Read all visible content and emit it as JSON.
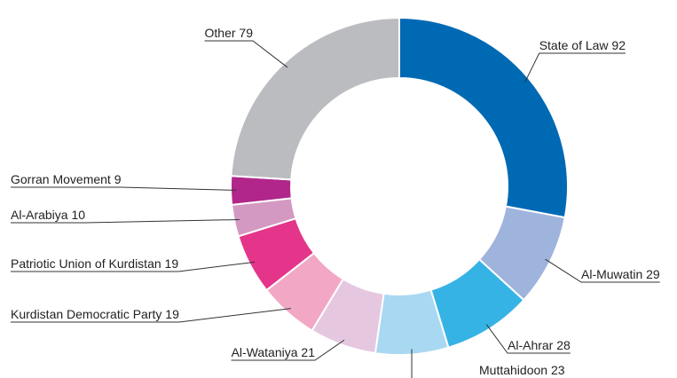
{
  "chart_data": {
    "type": "donut",
    "categories": [
      "State of Law",
      "Al-Muwatin",
      "Al-Ahrar",
      "Muttahidoon",
      "Al-Wataniya",
      "Kurdistan Democratic Party",
      "Patriotic Union of Kurdistan",
      "Al-Arabiya",
      "Gorran Movement",
      "Other"
    ],
    "values": [
      92,
      29,
      28,
      23,
      21,
      19,
      19,
      10,
      9,
      79
    ],
    "colors": [
      "#0069b4",
      "#9fb4dc",
      "#36b3e5",
      "#a9d8f2",
      "#e5c8e0",
      "#f2a7c5",
      "#e4358a",
      "#d499c3",
      "#b0268b",
      "#bbbcc0"
    ]
  }
}
